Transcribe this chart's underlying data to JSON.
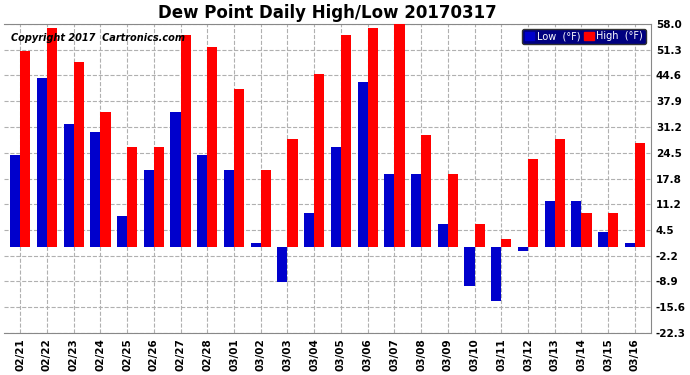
{
  "title": "Dew Point Daily High/Low 20170317",
  "copyright": "Copyright 2017  Cartronics.com",
  "dates": [
    "02/21",
    "02/22",
    "02/23",
    "02/24",
    "02/25",
    "02/26",
    "02/27",
    "02/28",
    "03/01",
    "03/02",
    "03/03",
    "03/04",
    "03/05",
    "03/06",
    "03/07",
    "03/08",
    "03/09",
    "03/10",
    "03/11",
    "03/12",
    "03/13",
    "03/14",
    "03/15",
    "03/16"
  ],
  "high": [
    51,
    57,
    48,
    35,
    26,
    26,
    55,
    52,
    41,
    20,
    28,
    45,
    55,
    57,
    58,
    29,
    19,
    6,
    2,
    23,
    28,
    9,
    9,
    27
  ],
  "low": [
    24,
    44,
    32,
    30,
    8,
    20,
    35,
    24,
    20,
    1,
    -9,
    9,
    26,
    43,
    19,
    19,
    6,
    -10,
    -14,
    -1,
    12,
    12,
    4,
    1
  ],
  "ylim_min": -22.3,
  "ylim_max": 58.0,
  "yticks": [
    58.0,
    51.3,
    44.6,
    37.9,
    31.2,
    24.5,
    17.8,
    11.2,
    4.5,
    -2.2,
    -8.9,
    -15.6,
    -22.3
  ],
  "bg_color": "#ffffff",
  "plot_bg": "#ffffff",
  "grid_color": "#b0b0b0",
  "bar_width": 0.38,
  "high_color": "#ff0000",
  "low_color": "#0000cc",
  "title_fontsize": 12,
  "tick_fontsize": 7.5,
  "legend_high_label": "High  (°F)",
  "legend_low_label": "Low  (°F)"
}
